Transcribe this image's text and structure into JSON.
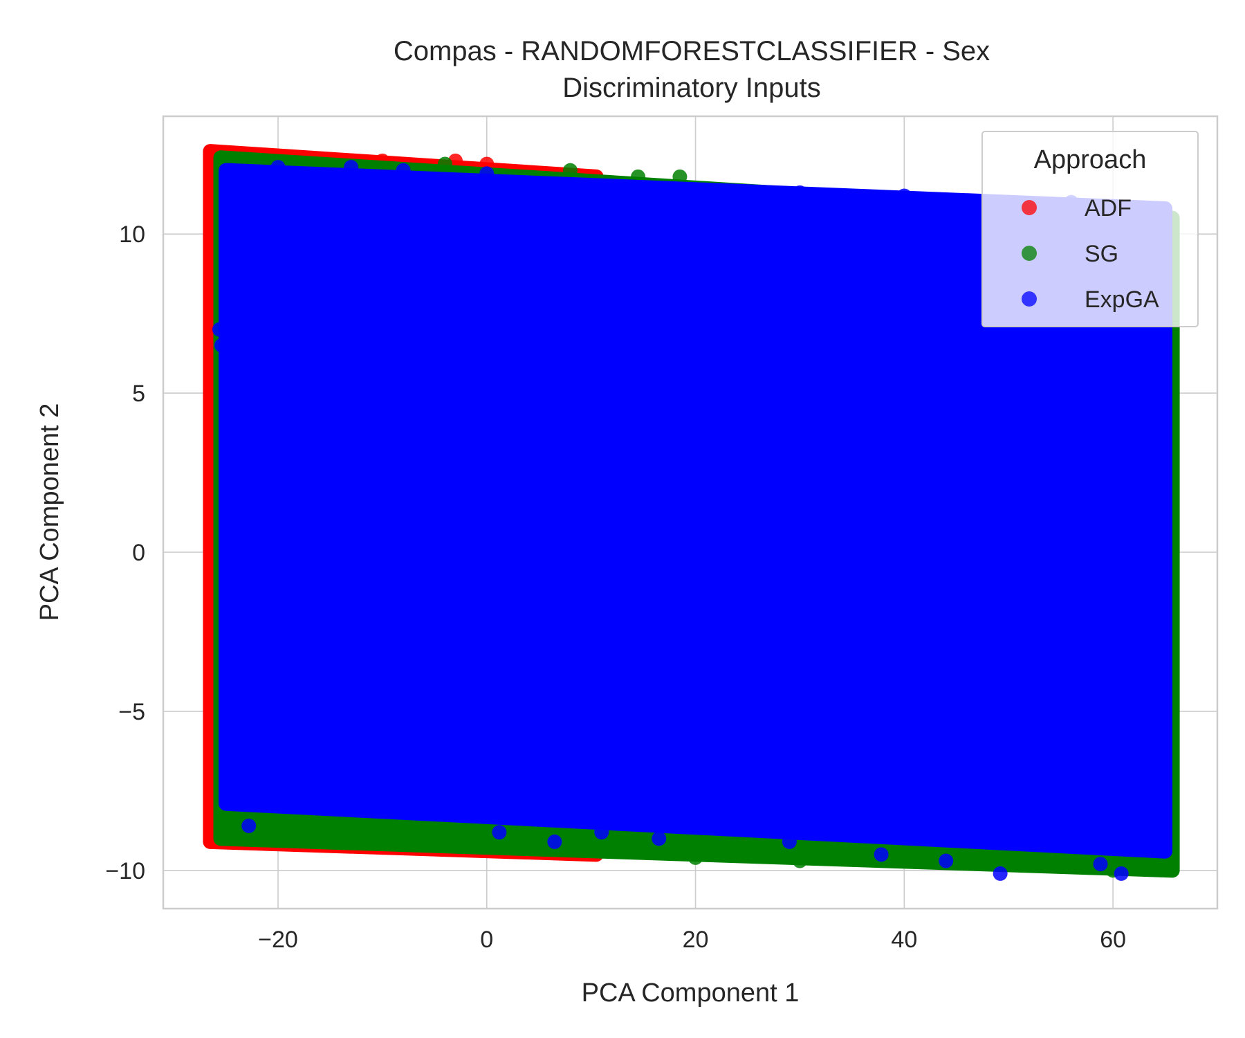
{
  "chart_data": {
    "type": "scatter",
    "title": [
      "Compas - RANDOMFORESTCLASSIFIER - Sex",
      "Discriminatory Inputs"
    ],
    "xlabel": "PCA Component 1",
    "ylabel": "PCA Component 2",
    "xlim": [
      -31,
      70
    ],
    "ylim": [
      -11.2,
      13.7
    ],
    "x_ticks": [
      -20,
      0,
      20,
      40,
      60
    ],
    "x_tick_labels": [
      "−20",
      "0",
      "20",
      "40",
      "60"
    ],
    "y_ticks": [
      -10,
      -5,
      0,
      5,
      10
    ],
    "y_tick_labels": [
      "−10",
      "−5",
      "0",
      "5",
      "10"
    ],
    "grid": true,
    "legend": {
      "title": "Approach",
      "placement": "top-right"
    },
    "series": [
      {
        "name": "ADF",
        "color": "#ff0000",
        "region": {
          "x_range": [
            -26.5,
            10.5
          ],
          "y_top_left": 12.6,
          "y_top_right": 11.8,
          "y_bottom_left": -9.1,
          "y_bottom_right": -9.5
        },
        "points": [
          [
            -26.2,
            12.5
          ],
          [
            -25.8,
            6.1
          ],
          [
            -26.4,
            -8.9
          ],
          [
            -26.0,
            0.0
          ],
          [
            -26.3,
            9.0
          ],
          [
            -26.1,
            -4.0
          ],
          [
            5.5,
            -9.4
          ],
          [
            -5.0,
            -9.3
          ],
          [
            -20.0,
            12.4
          ],
          [
            -10.0,
            12.3
          ],
          [
            0.0,
            12.2
          ],
          [
            -3.0,
            12.3
          ],
          [
            -15.0,
            -9.2
          ]
        ]
      },
      {
        "name": "SG",
        "color": "#008000",
        "region": {
          "x_range": [
            -25.5,
            65.7
          ],
          "y_top_left": 12.4,
          "y_top_right": 10.5,
          "y_bottom_left": -9.0,
          "y_bottom_right": -10.0
        },
        "points": [
          [
            14.5,
            11.8
          ],
          [
            18.5,
            11.8
          ],
          [
            -4.0,
            12.2
          ],
          [
            8.0,
            12.0
          ],
          [
            60.0,
            -10.0
          ],
          [
            50.0,
            -9.8
          ],
          [
            40.0,
            -9.7
          ],
          [
            30.0,
            -9.7
          ],
          [
            20.0,
            -9.6
          ],
          [
            65.5,
            5.0
          ],
          [
            65.5,
            -2.0
          ],
          [
            65.5,
            8.0
          ],
          [
            54.0,
            10.5
          ],
          [
            -25.4,
            10.0
          ],
          [
            -25.3,
            -8.8
          ]
        ]
      },
      {
        "name": "ExpGA",
        "color": "#0000ff",
        "region": {
          "x_range": [
            -25.0,
            65.0
          ],
          "y_top_left": 12.0,
          "y_top_right": 10.8,
          "y_bottom_left": -7.9,
          "y_bottom_right": -9.4
        },
        "points": [
          [
            -22.8,
            -8.6
          ],
          [
            1.2,
            -8.8
          ],
          [
            6.5,
            -9.1
          ],
          [
            11.0,
            -8.8
          ],
          [
            16.5,
            -9.0
          ],
          [
            29.0,
            -9.1
          ],
          [
            37.8,
            -9.5
          ],
          [
            44.0,
            -9.7
          ],
          [
            49.2,
            -10.1
          ],
          [
            58.8,
            -9.8
          ],
          [
            60.8,
            -10.1
          ],
          [
            -25.6,
            7.0
          ],
          [
            -25.4,
            6.5
          ],
          [
            -24.5,
            12.0
          ],
          [
            -13.0,
            12.1
          ],
          [
            -20.0,
            12.1
          ],
          [
            -8.0,
            12.0
          ],
          [
            0.0,
            11.9
          ],
          [
            10.0,
            11.5
          ],
          [
            20.0,
            11.4
          ],
          [
            30.0,
            11.3
          ],
          [
            40.0,
            11.2
          ],
          [
            50.0,
            11.0
          ],
          [
            51.5,
            10.8
          ],
          [
            56.0,
            11.0
          ],
          [
            59.5,
            10.6
          ],
          [
            64.5,
            10.0
          ],
          [
            64.8,
            4.0
          ],
          [
            64.8,
            -3.0
          ],
          [
            64.7,
            -8.0
          ]
        ]
      }
    ]
  }
}
